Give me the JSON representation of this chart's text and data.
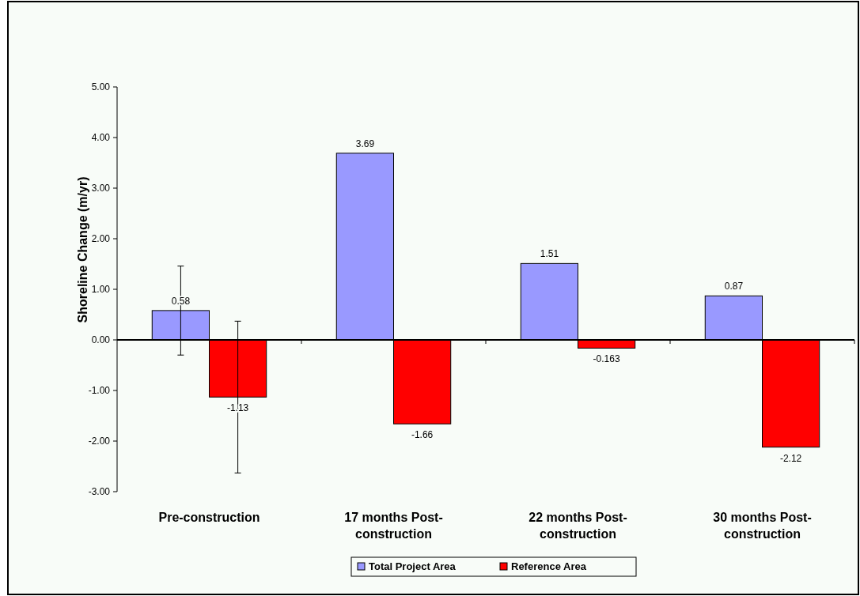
{
  "chart_data": {
    "type": "bar",
    "ylabel": "Shoreline Change (m/yr)",
    "categories": [
      "Pre-construction",
      "17 months Post-construction",
      "22 months Post-construction",
      "30 months Post-construction"
    ],
    "series": [
      {
        "name": "Total Project Area",
        "color": "#9999ff",
        "values": [
          0.58,
          3.69,
          1.51,
          0.87
        ],
        "errors": [
          0.88,
          null,
          null,
          null
        ]
      },
      {
        "name": "Reference Area",
        "color": "#ff0000",
        "values": [
          -1.13,
          -1.66,
          -0.163,
          -2.12
        ],
        "errors": [
          1.5,
          null,
          null,
          null
        ]
      }
    ],
    "data_labels": true,
    "ylim": [
      -3,
      5
    ],
    "yticks": [
      {
        "value": -3,
        "label": "-3.00"
      },
      {
        "value": -2,
        "label": "-2.00"
      },
      {
        "value": -1,
        "label": "-1.00"
      },
      {
        "value": 0,
        "label": "0.00"
      },
      {
        "value": 1,
        "label": "1.00"
      },
      {
        "value": 2,
        "label": "2.00"
      },
      {
        "value": 3,
        "label": "3.00"
      },
      {
        "value": 4,
        "label": "4.00"
      },
      {
        "value": 5,
        "label": "5.00"
      }
    ],
    "legend": "bottom"
  }
}
